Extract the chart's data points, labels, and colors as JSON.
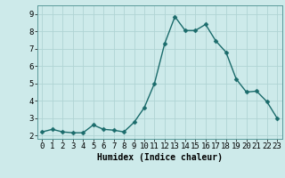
{
  "x": [
    0,
    1,
    2,
    3,
    4,
    5,
    6,
    7,
    8,
    9,
    10,
    11,
    12,
    13,
    14,
    15,
    16,
    17,
    18,
    19,
    20,
    21,
    22,
    23
  ],
  "y": [
    2.2,
    2.35,
    2.2,
    2.15,
    2.15,
    2.6,
    2.35,
    2.3,
    2.2,
    2.75,
    3.6,
    5.0,
    7.3,
    8.85,
    8.05,
    8.05,
    8.4,
    7.45,
    6.8,
    5.25,
    4.5,
    4.55,
    3.95,
    3.0
  ],
  "line_color": "#1a6b6b",
  "marker": "D",
  "marker_size": 2.5,
  "background_color": "#cdeaea",
  "grid_color": "#b0d4d4",
  "xlabel": "Humidex (Indice chaleur)",
  "xlim": [
    -0.5,
    23.5
  ],
  "ylim": [
    1.8,
    9.5
  ],
  "yticks": [
    2,
    3,
    4,
    5,
    6,
    7,
    8,
    9
  ],
  "xticks": [
    0,
    1,
    2,
    3,
    4,
    5,
    6,
    7,
    8,
    9,
    10,
    11,
    12,
    13,
    14,
    15,
    16,
    17,
    18,
    19,
    20,
    21,
    22,
    23
  ],
  "xlabel_fontsize": 7,
  "tick_fontsize": 6.5,
  "linewidth": 1.0
}
